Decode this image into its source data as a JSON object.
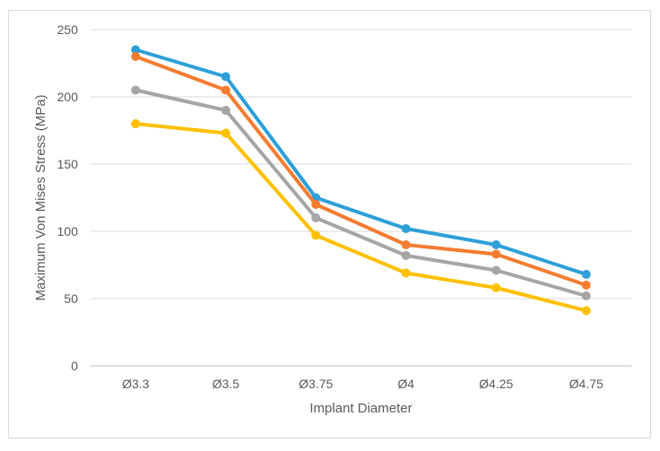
{
  "chart_data": {
    "type": "line",
    "title": "",
    "xlabel": "Implant Diameter",
    "ylabel": "Maximum Von Mises Stress (MPa)",
    "categories": [
      "Ø3.3",
      "Ø3.5",
      "Ø3.75",
      "Ø4",
      "Ø4.25",
      "Ø4.75"
    ],
    "ylim": [
      0,
      250
    ],
    "yticks": [
      0,
      50,
      100,
      150,
      200,
      250
    ],
    "grid": true,
    "legend": "none",
    "series": [
      {
        "color": "#2e9fd8",
        "values": [
          235,
          215,
          125,
          102,
          90,
          68
        ]
      },
      {
        "color": "#f47c30",
        "values": [
          230,
          205,
          120,
          90,
          83,
          60
        ]
      },
      {
        "color": "#a5a5a5",
        "values": [
          205,
          190,
          110,
          82,
          71,
          52
        ]
      },
      {
        "color": "#ffc000",
        "values": [
          180,
          173,
          97,
          69,
          58,
          41
        ]
      }
    ]
  }
}
